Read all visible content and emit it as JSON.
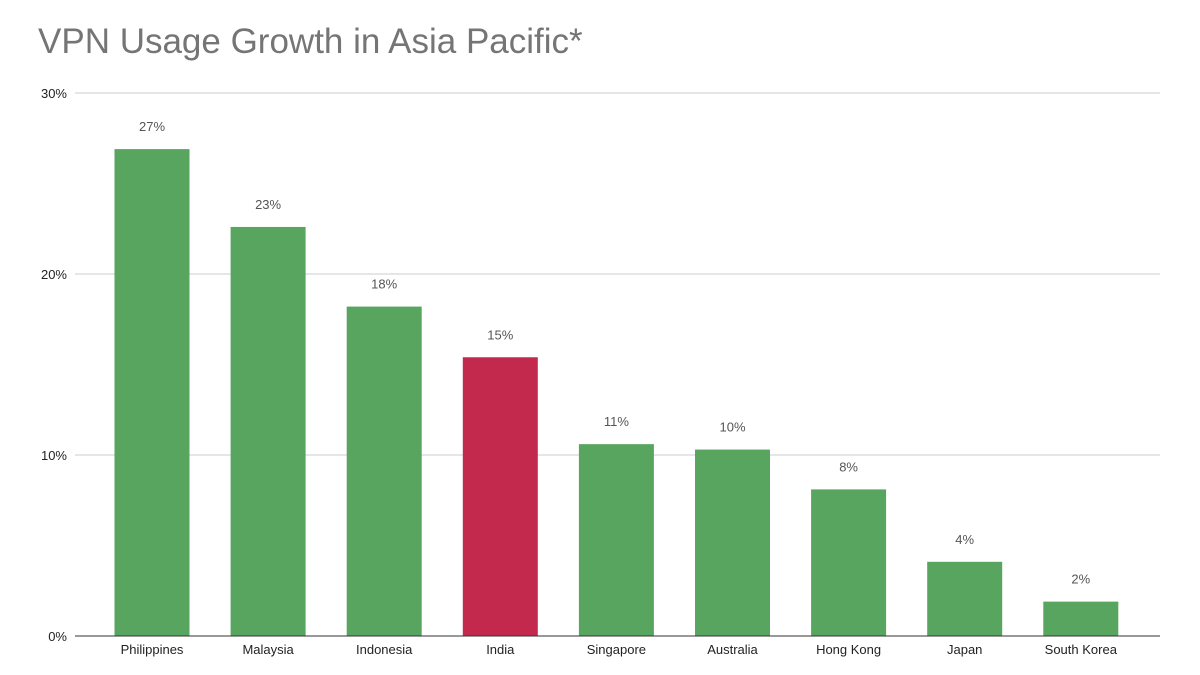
{
  "chart_data": {
    "type": "bar",
    "title": "VPN Usage Growth in Asia Pacific*",
    "xlabel": "",
    "ylabel": "",
    "categories": [
      "Philippines",
      "Malaysia",
      "Indonesia",
      "India",
      "Singapore",
      "Australia",
      "Hong Kong",
      "Japan",
      "South Korea"
    ],
    "values": [
      26.9,
      22.6,
      18.2,
      15.4,
      10.6,
      10.3,
      8.1,
      4.1,
      1.9
    ],
    "data_labels": [
      "27%",
      "23%",
      "18%",
      "15%",
      "11%",
      "10%",
      "8%",
      "4%",
      "2%"
    ],
    "bar_colors": [
      "#57a55f",
      "#57a55f",
      "#57a55f",
      "#c3294c",
      "#57a55f",
      "#57a55f",
      "#57a55f",
      "#57a55f",
      "#57a55f"
    ],
    "ylim": [
      0,
      30
    ],
    "yticks": [
      0,
      10,
      20,
      30
    ],
    "ytick_labels": [
      "0%",
      "10%",
      "20%",
      "30%"
    ],
    "grid": true,
    "legend": "none"
  },
  "colors": {
    "primary": "#57a55f",
    "highlight": "#c3294c",
    "title": "#757575",
    "grid": "#cccccc",
    "axis": "#333333",
    "tick_text": "#222222",
    "data_label_text": "#555555"
  }
}
